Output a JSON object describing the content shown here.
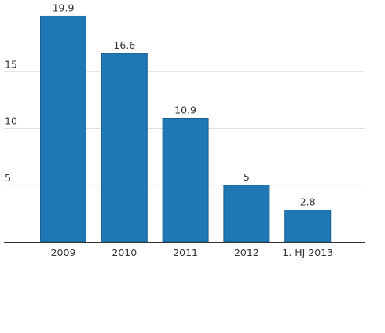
{
  "chart_data": {
    "type": "bar",
    "categories": [
      "2009",
      "2010",
      "2011",
      "2012",
      "1. HJ 2013"
    ],
    "values": [
      19.9,
      16.6,
      10.9,
      5,
      2.8
    ],
    "data_labels": [
      "19.9",
      "16.6",
      "10.9",
      "5",
      "2.8"
    ],
    "y_ticks": [
      {
        "value": 5,
        "label": "5"
      },
      {
        "value": 10,
        "label": "10"
      },
      {
        "value": 15,
        "label": "15"
      }
    ],
    "title": "",
    "xlabel": "",
    "ylabel": "",
    "ylim": [
      0,
      20
    ],
    "grid": true,
    "bar_color": "#1f77b4",
    "bar_edge_color": "#1a5f91",
    "grid_color": "#dddddd",
    "axis_color": "#333333"
  }
}
